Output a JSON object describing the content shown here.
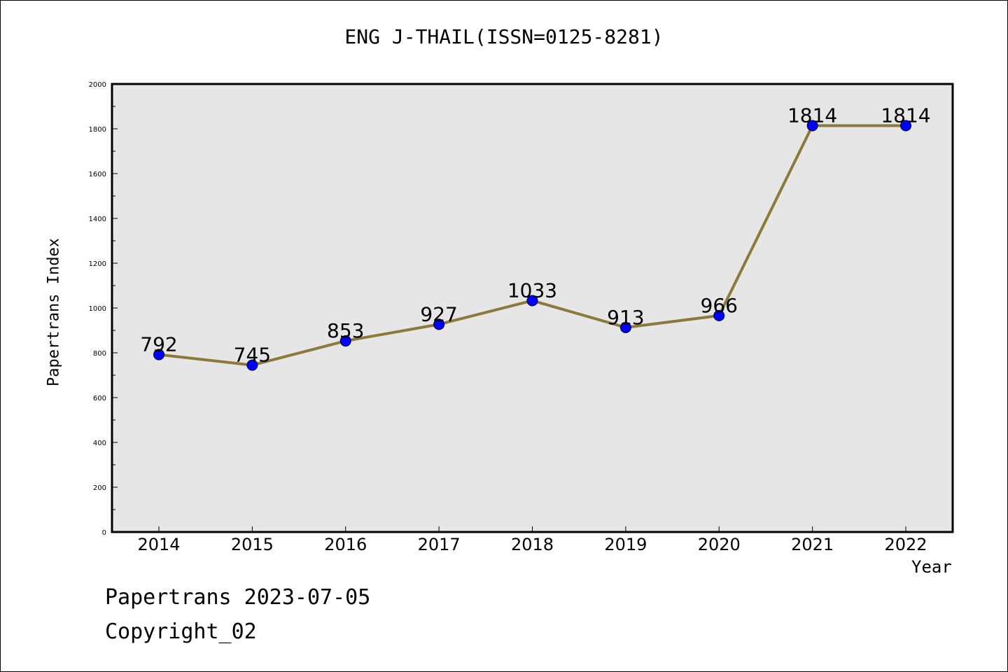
{
  "chart_data": {
    "type": "line",
    "title": "ENG J-THAIL(ISSN=0125-8281)",
    "xlabel": "Year",
    "ylabel": "Papertrans Index",
    "categories": [
      "2014",
      "2015",
      "2016",
      "2017",
      "2018",
      "2019",
      "2020",
      "2021",
      "2022"
    ],
    "series": [
      {
        "values": [
          792,
          745,
          853,
          927,
          1033,
          913,
          966,
          1814,
          1814
        ]
      }
    ],
    "data_labels": [
      "792",
      "745",
      "853",
      "927",
      "1033",
      "913",
      "966",
      "1814",
      "1814"
    ],
    "ylim": [
      0,
      2000
    ],
    "yticks": [
      "0",
      "200",
      "400",
      "600",
      "800",
      "1000",
      "1200",
      "1400",
      "1600",
      "1800",
      "2000"
    ],
    "grid": false,
    "colors": {
      "line": "#8b7a3a",
      "marker": "#0000ff",
      "plot_bg": "#e6e6e6"
    }
  },
  "footer": {
    "date_text": "Papertrans 2023-07-05",
    "copyright_text": "Copyright_02"
  }
}
